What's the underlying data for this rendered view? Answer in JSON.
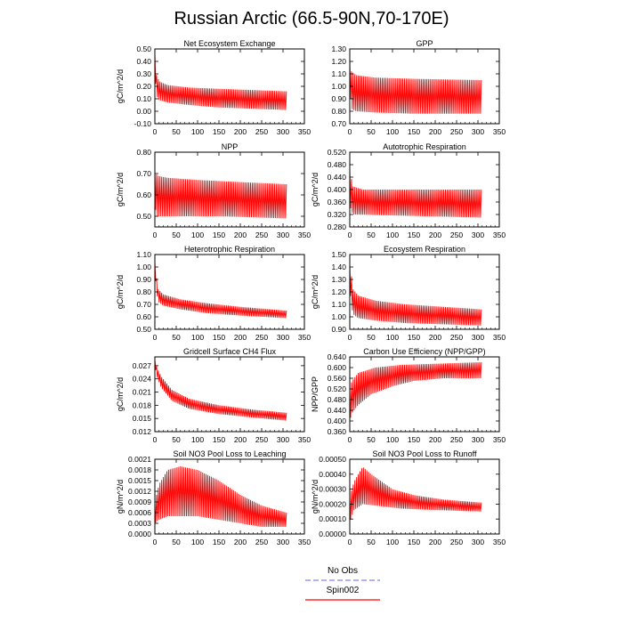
{
  "title": "Russian Arctic (66.5-90N,70-170E)",
  "legend": {
    "items": [
      {
        "label": "No Obs",
        "color": "#8080ff",
        "dash": true
      },
      {
        "label": "Spin002",
        "color": "#ff0000",
        "dash": false
      }
    ]
  },
  "chart_data": [
    {
      "type": "line",
      "title": "Net Ecosystem Exchange",
      "ylabel": "gC/m^2/d",
      "xlim": [
        0,
        350
      ],
      "ylim": [
        -0.1,
        0.5
      ],
      "xticks": [
        0,
        50,
        100,
        150,
        200,
        250,
        300,
        350
      ],
      "yticks": [
        "-0.10",
        "0.00",
        "0.10",
        "0.20",
        "0.30",
        "0.40",
        "0.50"
      ],
      "series": [
        {
          "color": "#ff0000",
          "x_end": 308,
          "upper": [
            [
              0,
              0.47
            ],
            [
              3,
              0.3
            ],
            [
              10,
              0.24
            ],
            [
              30,
              0.21
            ],
            [
              80,
              0.19
            ],
            [
              150,
              0.18
            ],
            [
              230,
              0.17
            ],
            [
              308,
              0.16
            ]
          ],
          "lower": [
            [
              0,
              0.4
            ],
            [
              3,
              0.13
            ],
            [
              10,
              0.09
            ],
            [
              30,
              0.07
            ],
            [
              80,
              0.05
            ],
            [
              150,
              0.03
            ],
            [
              230,
              0.02
            ],
            [
              308,
              0.01
            ]
          ]
        }
      ]
    },
    {
      "type": "line",
      "title": "GPP",
      "ylabel": "",
      "xlim": [
        0,
        350
      ],
      "ylim": [
        0.7,
        1.3
      ],
      "xticks": [
        0,
        50,
        100,
        150,
        200,
        250,
        300,
        350
      ],
      "yticks": [
        "0.70",
        "0.80",
        "0.90",
        "1.00",
        "1.10",
        "1.20",
        "1.30"
      ],
      "series": [
        {
          "color": "#ff0000",
          "x_end": 308,
          "upper": [
            [
              0,
              1.22
            ],
            [
              4,
              1.12
            ],
            [
              15,
              1.09
            ],
            [
              60,
              1.07
            ],
            [
              150,
              1.06
            ],
            [
              308,
              1.05
            ]
          ],
          "lower": [
            [
              0,
              0.98
            ],
            [
              4,
              0.82
            ],
            [
              15,
              0.8
            ],
            [
              60,
              0.79
            ],
            [
              150,
              0.78
            ],
            [
              308,
              0.78
            ]
          ]
        }
      ]
    },
    {
      "type": "line",
      "title": "NPP",
      "ylabel": "gC/m^2/d",
      "xlim": [
        0,
        350
      ],
      "ylim": [
        0.45,
        0.8
      ],
      "xticks": [
        0,
        50,
        100,
        150,
        200,
        250,
        300,
        350
      ],
      "yticks": [
        "0.50",
        "0.60",
        "0.70",
        "0.80"
      ],
      "series": [
        {
          "color": "#ff0000",
          "x_end": 308,
          "upper": [
            [
              0,
              0.72
            ],
            [
              5,
              0.69
            ],
            [
              30,
              0.68
            ],
            [
              100,
              0.67
            ],
            [
              200,
              0.66
            ],
            [
              308,
              0.65
            ]
          ],
          "lower": [
            [
              0,
              0.55
            ],
            [
              5,
              0.5
            ],
            [
              50,
              0.5
            ],
            [
              150,
              0.5
            ],
            [
              308,
              0.49
            ]
          ]
        }
      ]
    },
    {
      "type": "line",
      "title": "Autotrophic Respiration",
      "ylabel": "gC/m^2/d",
      "xlim": [
        0,
        350
      ],
      "ylim": [
        0.28,
        0.52
      ],
      "xticks": [
        0,
        50,
        100,
        150,
        200,
        250,
        300,
        350
      ],
      "yticks": [
        "0.280",
        "0.320",
        "0.360",
        "0.400",
        "0.440",
        "0.480",
        "0.520"
      ],
      "series": [
        {
          "color": "#ff0000",
          "x_end": 308,
          "upper": [
            [
              0,
              0.47
            ],
            [
              3,
              0.44
            ],
            [
              8,
              0.41
            ],
            [
              30,
              0.4
            ],
            [
              308,
              0.4
            ]
          ],
          "lower": [
            [
              0,
              0.36
            ],
            [
              3,
              0.33
            ],
            [
              10,
              0.32
            ],
            [
              308,
              0.31
            ]
          ]
        }
      ]
    },
    {
      "type": "line",
      "title": "Heterotrophic Respiration",
      "ylabel": "gC/m^2/d",
      "xlim": [
        0,
        350
      ],
      "ylim": [
        0.5,
        1.1
      ],
      "xticks": [
        0,
        50,
        100,
        150,
        200,
        250,
        300,
        350
      ],
      "yticks": [
        "0.50",
        "0.60",
        "0.70",
        "0.80",
        "0.90",
        "1.00",
        "1.10"
      ],
      "series": [
        {
          "color": "#ff0000",
          "x_end": 308,
          "upper": [
            [
              0,
              1.05
            ],
            [
              3,
              0.93
            ],
            [
              8,
              0.82
            ],
            [
              20,
              0.78
            ],
            [
              60,
              0.74
            ],
            [
              120,
              0.71
            ],
            [
              200,
              0.68
            ],
            [
              308,
              0.65
            ]
          ],
          "lower": [
            [
              0,
              1.0
            ],
            [
              3,
              0.83
            ],
            [
              8,
              0.72
            ],
            [
              20,
              0.69
            ],
            [
              60,
              0.66
            ],
            [
              120,
              0.63
            ],
            [
              200,
              0.61
            ],
            [
              308,
              0.59
            ]
          ]
        }
      ]
    },
    {
      "type": "line",
      "title": "Ecosystem Respiration",
      "ylabel": "gC/m^2/d",
      "xlim": [
        0,
        350
      ],
      "ylim": [
        0.9,
        1.5
      ],
      "xticks": [
        0,
        50,
        100,
        150,
        200,
        250,
        300,
        350
      ],
      "yticks": [
        "0.90",
        "1.00",
        "1.10",
        "1.20",
        "1.30",
        "1.40",
        "1.50"
      ],
      "series": [
        {
          "color": "#ff0000",
          "x_end": 308,
          "upper": [
            [
              0,
              1.43
            ],
            [
              3,
              1.35
            ],
            [
              8,
              1.22
            ],
            [
              20,
              1.17
            ],
            [
              60,
              1.13
            ],
            [
              130,
              1.1
            ],
            [
              220,
              1.08
            ],
            [
              308,
              1.06
            ]
          ],
          "lower": [
            [
              0,
              1.3
            ],
            [
              3,
              1.1
            ],
            [
              8,
              1.02
            ],
            [
              20,
              0.99
            ],
            [
              60,
              0.97
            ],
            [
              130,
              0.95
            ],
            [
              220,
              0.94
            ],
            [
              308,
              0.93
            ]
          ]
        }
      ]
    },
    {
      "type": "line",
      "title": "Gridcell Surface CH4 Flux",
      "ylabel": "gC/m^2/d",
      "xlim": [
        0,
        350
      ],
      "ylim": [
        0.012,
        0.029
      ],
      "xticks": [
        0,
        50,
        100,
        150,
        200,
        250,
        300,
        350
      ],
      "yticks": [
        "0.012",
        "0.015",
        "0.018",
        "0.021",
        "0.024",
        "0.027"
      ],
      "series": [
        {
          "color": "#ff0000",
          "x_end": 308,
          "upper": [
            [
              0,
              0.0285
            ],
            [
              5,
              0.0265
            ],
            [
              15,
              0.0245
            ],
            [
              40,
              0.0215
            ],
            [
              80,
              0.0195
            ],
            [
              150,
              0.018
            ],
            [
              230,
              0.017
            ],
            [
              308,
              0.0163
            ]
          ],
          "lower": [
            [
              0,
              0.027
            ],
            [
              5,
              0.0245
            ],
            [
              15,
              0.022
            ],
            [
              40,
              0.019
            ],
            [
              80,
              0.0172
            ],
            [
              150,
              0.016
            ],
            [
              230,
              0.0152
            ],
            [
              308,
              0.0145
            ]
          ]
        }
      ]
    },
    {
      "type": "line",
      "title": "Carbon Use Efficiency (NPP/GPP)",
      "ylabel": "NPP/GPP",
      "xlim": [
        0,
        350
      ],
      "ylim": [
        0.36,
        0.64
      ],
      "xticks": [
        0,
        50,
        100,
        150,
        200,
        250,
        300,
        350
      ],
      "yticks": [
        "0.360",
        "0.400",
        "0.440",
        "0.480",
        "0.520",
        "0.560",
        "0.600",
        "0.640"
      ],
      "series": [
        {
          "color": "#ff0000",
          "x_end": 308,
          "upper": [
            [
              0,
              0.52
            ],
            [
              5,
              0.55
            ],
            [
              20,
              0.58
            ],
            [
              60,
              0.6
            ],
            [
              120,
              0.61
            ],
            [
              308,
              0.62
            ]
          ],
          "lower": [
            [
              0,
              0.4
            ],
            [
              5,
              0.43
            ],
            [
              20,
              0.46
            ],
            [
              50,
              0.5
            ],
            [
              100,
              0.53
            ],
            [
              150,
              0.55
            ],
            [
              220,
              0.56
            ],
            [
              308,
              0.56
            ]
          ]
        }
      ]
    },
    {
      "type": "line",
      "title": "Soil NO3 Pool Loss to Leaching",
      "ylabel": "gN/m^2/d",
      "xlim": [
        0,
        350
      ],
      "ylim": [
        0.0,
        0.0021
      ],
      "xticks": [
        0,
        50,
        100,
        150,
        200,
        250,
        300,
        350
      ],
      "yticks": [
        "0.0000",
        "0.0003",
        "0.0006",
        "0.0009",
        "0.0012",
        "0.0015",
        "0.0018",
        "0.0021"
      ],
      "series": [
        {
          "color": "#ff0000",
          "x_end": 308,
          "upper": [
            [
              0,
              0.0009
            ],
            [
              10,
              0.0014
            ],
            [
              30,
              0.0018
            ],
            [
              60,
              0.0019
            ],
            [
              100,
              0.0018
            ],
            [
              150,
              0.0015
            ],
            [
              200,
              0.0011
            ],
            [
              250,
              0.0008
            ],
            [
              308,
              0.0006
            ]
          ],
          "lower": [
            [
              0,
              0.0003
            ],
            [
              10,
              0.0004
            ],
            [
              30,
              0.0005
            ],
            [
              60,
              0.0005
            ],
            [
              100,
              0.0005
            ],
            [
              150,
              0.0004
            ],
            [
              200,
              0.0003
            ],
            [
              250,
              0.0002
            ],
            [
              308,
              0.0002
            ]
          ]
        }
      ]
    },
    {
      "type": "line",
      "title": "Soil NO3 Pool Loss to Runoff",
      "ylabel": "gN/m^2/d",
      "xlim": [
        0,
        350
      ],
      "ylim": [
        0.0,
        0.0005
      ],
      "xticks": [
        0,
        50,
        100,
        150,
        200,
        250,
        300,
        350
      ],
      "yticks": [
        "0.00000",
        "0.00010",
        "0.00020",
        "0.00030",
        "0.00040",
        "0.00050"
      ],
      "series": [
        {
          "color": "#ff0000",
          "x_end": 308,
          "upper": [
            [
              0,
              0.00025
            ],
            [
              10,
              0.00035
            ],
            [
              30,
              0.00045
            ],
            [
              50,
              0.0004
            ],
            [
              100,
              0.0003
            ],
            [
              150,
              0.00026
            ],
            [
              220,
              0.00023
            ],
            [
              308,
              0.00021
            ]
          ],
          "lower": [
            [
              0,
              8e-05
            ],
            [
              10,
              0.00016
            ],
            [
              30,
              0.0002
            ],
            [
              60,
              0.00019
            ],
            [
              120,
              0.00017
            ],
            [
              200,
              0.00016
            ],
            [
              308,
              0.00015
            ]
          ]
        }
      ]
    }
  ]
}
